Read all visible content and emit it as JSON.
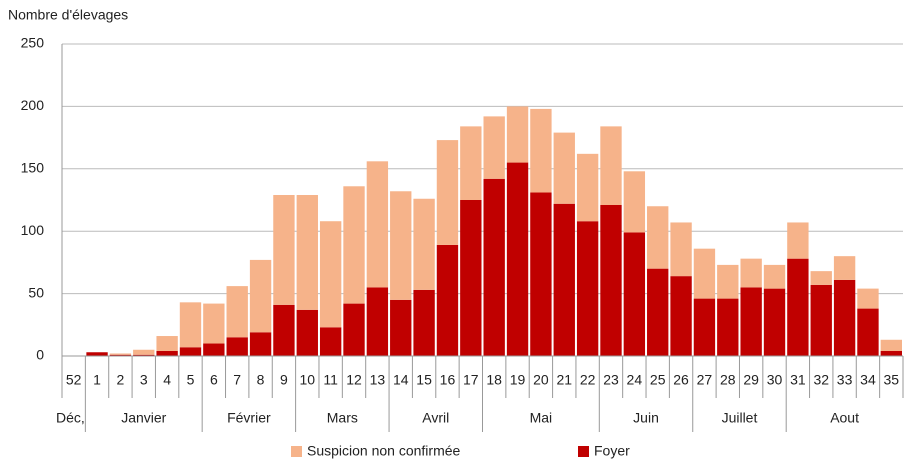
{
  "chart_data": {
    "type": "stacked_bar",
    "y_axis_label": "Nombre d'élevages",
    "categories": [
      "52",
      "1",
      "2",
      "3",
      "4",
      "5",
      "6",
      "7",
      "8",
      "9",
      "10",
      "11",
      "12",
      "13",
      "14",
      "15",
      "16",
      "17",
      "18",
      "19",
      "20",
      "21",
      "22",
      "23",
      "24",
      "25",
      "26",
      "27",
      "28",
      "29",
      "30",
      "31",
      "32",
      "33",
      "34",
      "35"
    ],
    "groups": [
      {
        "label": "Déc,",
        "span": 1
      },
      {
        "label": "Janvier",
        "span": 5
      },
      {
        "label": "Février",
        "span": 4
      },
      {
        "label": "Mars",
        "span": 4
      },
      {
        "label": "Avril",
        "span": 4
      },
      {
        "label": "Mai",
        "span": 5
      },
      {
        "label": "Juin",
        "span": 4
      },
      {
        "label": "Juillet",
        "span": 4
      },
      {
        "label": "Aout",
        "span": 5
      }
    ],
    "series": [
      {
        "name": "Foyer",
        "color": "#c00000",
        "values": [
          0,
          3,
          1,
          1,
          4,
          7,
          10,
          15,
          19,
          41,
          37,
          23,
          42,
          55,
          45,
          53,
          89,
          125,
          142,
          155,
          131,
          122,
          108,
          121,
          99,
          70,
          64,
          46,
          46,
          55,
          54,
          78,
          57,
          61,
          38,
          4
        ]
      },
      {
        "name": "Suspicion non confirmée",
        "color": "#f6b38a",
        "values": [
          0,
          0,
          1,
          4,
          12,
          36,
          32,
          41,
          58,
          88,
          92,
          85,
          94,
          101,
          87,
          73,
          84,
          59,
          50,
          45,
          67,
          57,
          54,
          63,
          49,
          50,
          43,
          40,
          27,
          23,
          19,
          29,
          11,
          19,
          16,
          9
        ]
      }
    ],
    "legend_order": [
      1,
      0
    ],
    "ylim": [
      0,
      250
    ],
    "yticks": [
      0,
      50,
      100,
      150,
      200,
      250
    ],
    "grid": true
  }
}
